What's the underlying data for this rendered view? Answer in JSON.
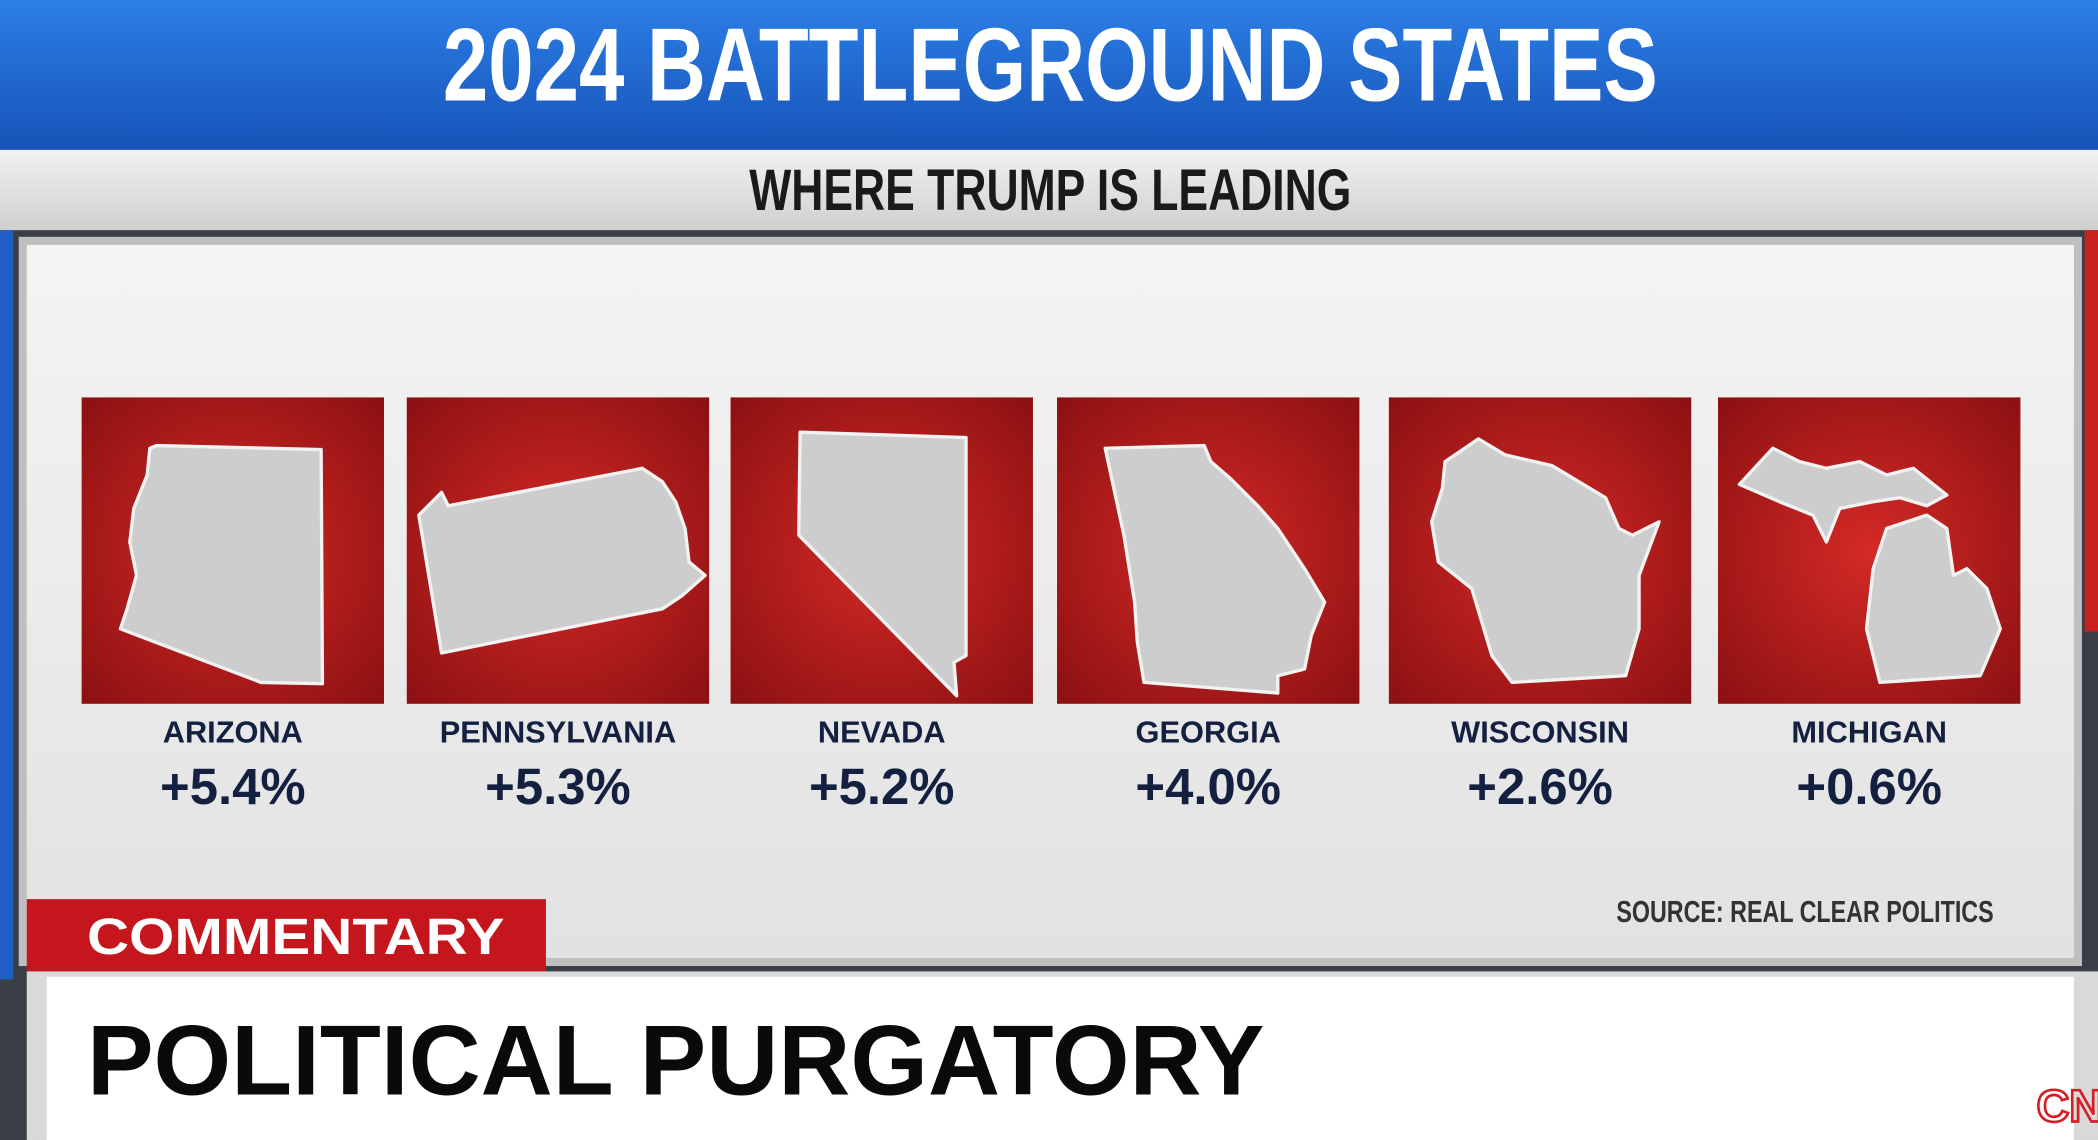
{
  "header": {
    "title": "2024 BATTLEGROUND STATES",
    "subtitle": "WHERE TRUMP IS LEADING"
  },
  "states": [
    {
      "name": "ARIZONA",
      "lead": "+5.4%"
    },
    {
      "name": "PENNSYLVANIA",
      "lead": "+5.3%"
    },
    {
      "name": "NEVADA",
      "lead": "+5.2%"
    },
    {
      "name": "GEORGIA",
      "lead": "+4.0%"
    },
    {
      "name": "WISCONSIN",
      "lead": "+2.6%"
    },
    {
      "name": "MICHIGAN",
      "lead": "+0.6%"
    }
  ],
  "source": "SOURCE: REAL CLEAR POLITICS",
  "banner": {
    "tag": "COMMENTARY",
    "headline": "POLITICAL PURGATORY"
  },
  "logo": "CNN"
}
